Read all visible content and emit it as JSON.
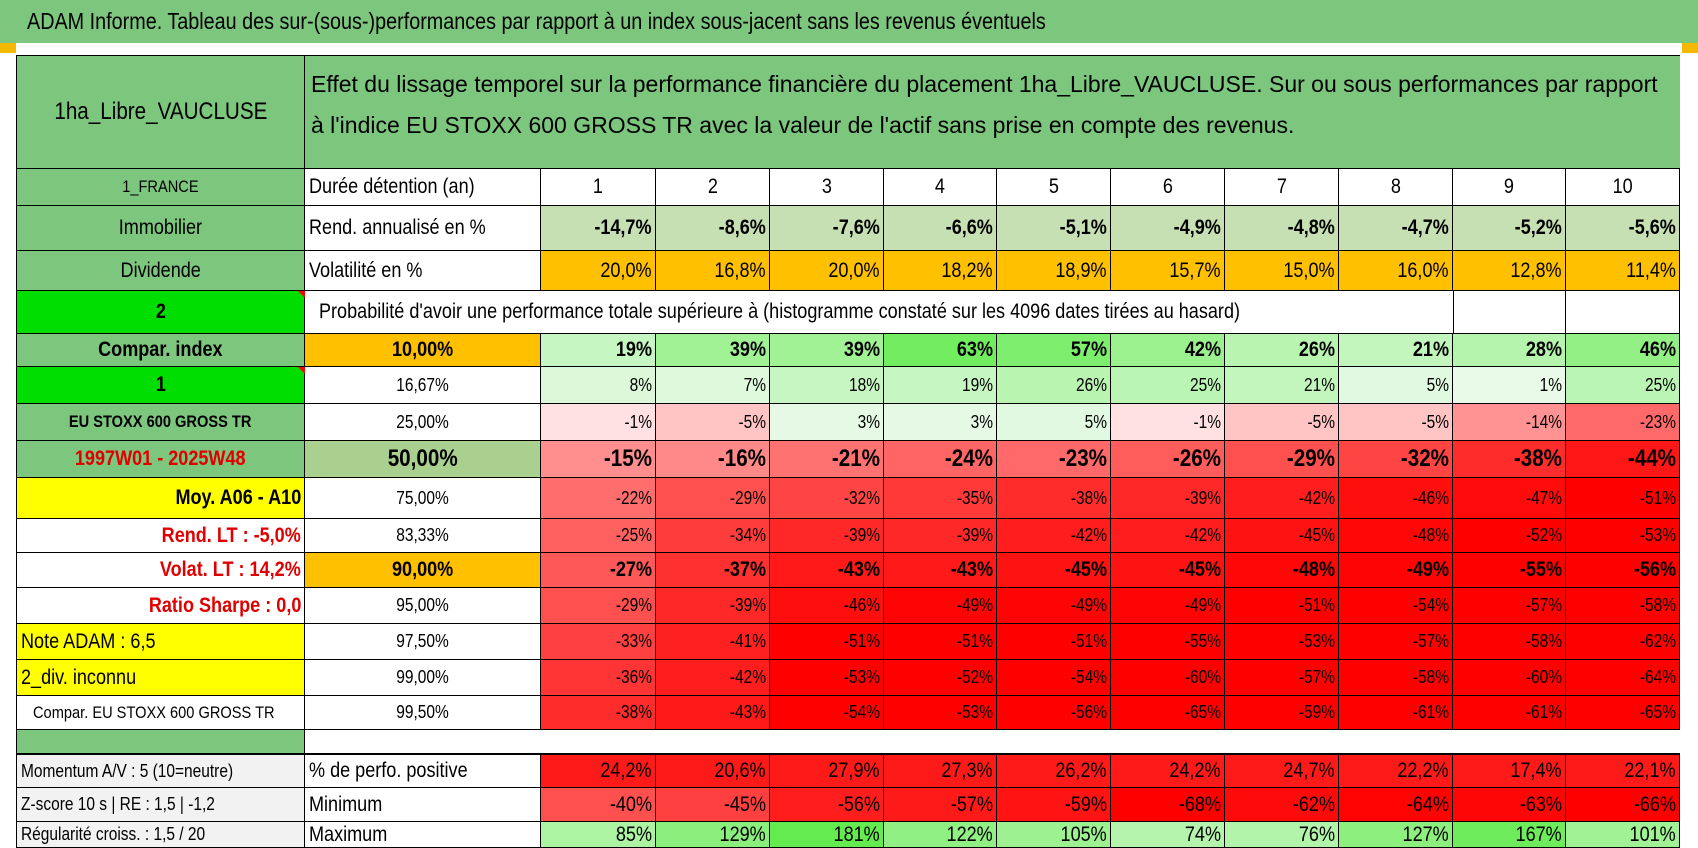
{
  "title": "ADAM Informe. Tableau des sur-(sous-)performances par rapport à un index sous-jacent sans les revenus éventuels",
  "header": {
    "name": "1ha_Libre_VAUCLUSE",
    "description": "Effet du lissage temporel sur la performance financière du placement 1ha_Libre_VAUCLUSE. Sur ou sous performances par rapport à l'indice EU STOXX 600 GROSS TR avec la valeur de l'actif sans prise en compte des revenus."
  },
  "left_labels": {
    "country": "1_FRANCE",
    "asset_class": "Immobilier",
    "income_type": "Dividende",
    "selector_1": "2",
    "compar_index_label": "Compar. index",
    "selector_2": "1",
    "index_name": "EU STOXX 600 GROSS TR",
    "period": "1997W01 - 2025W48",
    "moy": "Moy. A06 - A10",
    "rend_lt": "Rend. LT :    -5,0%",
    "volat_lt": "Volat. LT :    14,2%",
    "ratio_sharpe": "Ratio Sharpe :     0,0",
    "note_adam": "Note ADAM : 6,5",
    "div_inconnu": "2_div. inconnu",
    "compar_eu": "Compar. EU STOXX 600 GROSS TR",
    "momentum": "Momentum A/V : 5 (10=neutre)",
    "zscore": "Z-score 10 s | RE : 1,5 | -1,2",
    "regularite": "Régularité croiss. : 1,5 / 20"
  },
  "stats": {
    "duration_label": "Durée détention (an)",
    "years": [
      "1",
      "2",
      "3",
      "4",
      "5",
      "6",
      "7",
      "8",
      "9",
      "10"
    ],
    "rend_label": "Rend. annualisé en %",
    "rend": [
      "-14,7%",
      "-8,6%",
      "-7,6%",
      "-6,6%",
      "-5,1%",
      "-4,9%",
      "-4,8%",
      "-4,7%",
      "-5,2%",
      "-5,6%"
    ],
    "vol_label": "Volatilité en %",
    "vol": [
      "20,0%",
      "16,8%",
      "20,0%",
      "18,2%",
      "18,9%",
      "15,7%",
      "15,0%",
      "16,0%",
      "12,8%",
      "11,4%"
    ],
    "prob_label": "Probabilité d'avoir une performance totale supérieure à (histogramme constaté sur les 4096 dates tirées au hasard)"
  },
  "quantiles": [
    {
      "q": "10,00%",
      "vals": [
        "19%",
        "39%",
        "39%",
        "63%",
        "57%",
        "42%",
        "26%",
        "21%",
        "28%",
        "46%"
      ]
    },
    {
      "q": "16,67%",
      "vals": [
        "8%",
        "7%",
        "18%",
        "19%",
        "26%",
        "25%",
        "21%",
        "5%",
        "1%",
        "25%"
      ]
    },
    {
      "q": "25,00%",
      "vals": [
        "-1%",
        "-5%",
        "3%",
        "3%",
        "5%",
        "-1%",
        "-5%",
        "-5%",
        "-14%",
        "-23%"
      ]
    },
    {
      "q": "50,00%",
      "vals": [
        "-15%",
        "-16%",
        "-21%",
        "-24%",
        "-23%",
        "-26%",
        "-29%",
        "-32%",
        "-38%",
        "-44%"
      ]
    },
    {
      "q": "75,00%",
      "vals": [
        "-22%",
        "-29%",
        "-32%",
        "-35%",
        "-38%",
        "-39%",
        "-42%",
        "-46%",
        "-47%",
        "-51%"
      ]
    },
    {
      "q": "83,33%",
      "vals": [
        "-25%",
        "-34%",
        "-39%",
        "-39%",
        "-42%",
        "-42%",
        "-45%",
        "-48%",
        "-52%",
        "-53%"
      ]
    },
    {
      "q": "90,00%",
      "vals": [
        "-27%",
        "-37%",
        "-43%",
        "-43%",
        "-45%",
        "-45%",
        "-48%",
        "-49%",
        "-55%",
        "-56%"
      ]
    },
    {
      "q": "95,00%",
      "vals": [
        "-29%",
        "-39%",
        "-46%",
        "-49%",
        "-49%",
        "-49%",
        "-51%",
        "-54%",
        "-57%",
        "-58%"
      ]
    },
    {
      "q": "97,50%",
      "vals": [
        "-33%",
        "-41%",
        "-51%",
        "-51%",
        "-51%",
        "-55%",
        "-53%",
        "-57%",
        "-58%",
        "-62%"
      ]
    },
    {
      "q": "99,00%",
      "vals": [
        "-36%",
        "-42%",
        "-53%",
        "-52%",
        "-54%",
        "-60%",
        "-57%",
        "-58%",
        "-60%",
        "-64%"
      ]
    },
    {
      "q": "99,50%",
      "vals": [
        "-38%",
        "-43%",
        "-54%",
        "-53%",
        "-56%",
        "-65%",
        "-59%",
        "-61%",
        "-61%",
        "-65%"
      ]
    }
  ],
  "bottom": {
    "pos_label": "% de perfo. positive",
    "pos": [
      "24,2%",
      "20,6%",
      "27,9%",
      "27,3%",
      "26,2%",
      "24,2%",
      "24,7%",
      "22,2%",
      "17,4%",
      "22,1%"
    ],
    "min_label": "Minimum",
    "min": [
      "-40%",
      "-45%",
      "-56%",
      "-57%",
      "-59%",
      "-68%",
      "-62%",
      "-64%",
      "-63%",
      "-66%"
    ],
    "max_label": "Maximum",
    "max": [
      "85%",
      "129%",
      "181%",
      "122%",
      "105%",
      "74%",
      "76%",
      "127%",
      "167%",
      "101%"
    ]
  },
  "colors": {
    "header_green": "#7dc67e",
    "bright_green": "#00dd00",
    "yellow": "#ffff00",
    "orange": "#ffc000",
    "red_text": "#e00000",
    "positive_green": "#63be7b",
    "negative_red": "#ff0000"
  }
}
